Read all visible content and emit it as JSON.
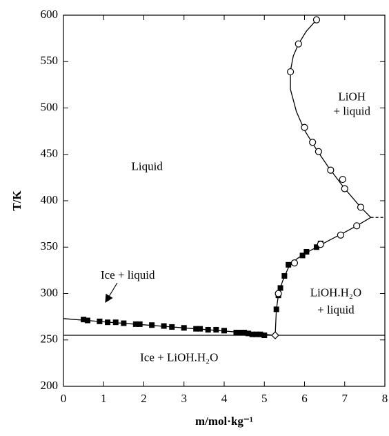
{
  "chart_data": {
    "type": "scatter",
    "xlabel": "m/mol·kg⁻¹",
    "ylabel": "T/K",
    "xlim": [
      0,
      8
    ],
    "ylim": [
      200,
      600
    ],
    "xticks": [
      0,
      1,
      2,
      3,
      4,
      5,
      6,
      7,
      8
    ],
    "yticks": [
      200,
      250,
      300,
      350,
      400,
      450,
      500,
      550,
      600
    ],
    "annotations": [
      [
        "Liquid"
      ],
      [
        "LiOH",
        "+ liquid"
      ],
      [
        "LiOH.H₂O",
        "+ liquid"
      ],
      [
        "Ice + liquid"
      ],
      [
        "Ice + LiOH.H₂O"
      ]
    ],
    "series": [
      {
        "marker": "none",
        "line": "solid",
        "color": "#000",
        "x": [
          0,
          1,
          2,
          3,
          4,
          4.5,
          5.0,
          5.27
        ],
        "values": [
          273,
          269.5,
          266.3,
          263,
          259.6,
          257.8,
          256,
          255
        ]
      },
      {
        "marker": "none",
        "line": "solid",
        "color": "#000",
        "x": [
          5.27,
          5.3,
          5.35,
          5.45,
          5.6,
          5.8,
          6.0,
          6.3,
          6.6,
          7.0,
          7.3,
          7.65,
          7.4,
          7.0,
          6.6,
          6.3,
          6.0,
          5.8,
          5.65,
          5.65,
          5.72,
          5.85,
          6.05,
          6.3
        ],
        "values": [
          255,
          283,
          298,
          313,
          328,
          337,
          343,
          350,
          357,
          366,
          373,
          382,
          393,
          413,
          436,
          455,
          476,
          496,
          520,
          540,
          556,
          569,
          583,
          595
        ]
      },
      {
        "marker": "none",
        "line": "solid",
        "color": "#000",
        "x": [
          0,
          8
        ],
        "values": [
          255,
          255
        ]
      },
      {
        "marker": "none",
        "line": "dashed",
        "color": "#000",
        "x": [
          7.65,
          8
        ],
        "values": [
          382,
          382
        ]
      },
      {
        "marker": "square",
        "color": "#000",
        "x": [
          0.5,
          0.6,
          0.9,
          1.1,
          1.3,
          1.5,
          1.8,
          1.9,
          2.2,
          2.5,
          2.7,
          3.0,
          3.3,
          3.4,
          3.6,
          3.8,
          4.0,
          4.3,
          4.4,
          4.5,
          4.6,
          4.7,
          4.8,
          4.9,
          5.0,
          5.3,
          5.35,
          5.4,
          5.5,
          5.6,
          5.95,
          6.05,
          6.3,
          6.4
        ],
        "values": [
          272,
          271,
          270,
          269,
          269,
          268,
          267,
          267,
          266,
          265,
          264,
          263,
          262,
          262,
          261,
          261,
          260,
          258,
          258,
          258,
          257,
          256,
          256,
          256,
          255,
          283,
          298,
          306,
          319,
          331,
          341,
          345,
          350,
          354
        ]
      },
      {
        "marker": "circle",
        "color": "#000",
        "x": [
          5.35,
          5.75,
          6.4,
          6.9,
          7.3,
          7.4,
          7.0,
          6.95,
          6.65,
          6.35,
          6.2,
          6.0,
          5.65,
          5.85,
          6.3
        ],
        "values": [
          300,
          333,
          353,
          363,
          373,
          393,
          413,
          423,
          433,
          453,
          463,
          479,
          539,
          569,
          595
        ]
      },
      {
        "marker": "diamond",
        "color": "#000",
        "x": [
          5.27
        ],
        "values": [
          255
        ]
      }
    ]
  }
}
